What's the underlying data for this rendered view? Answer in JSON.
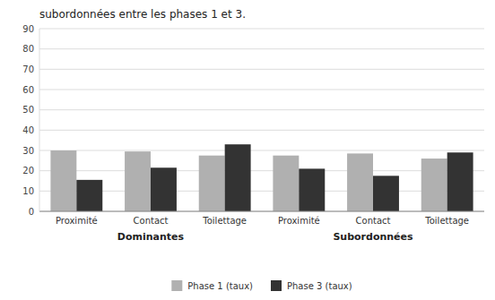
{
  "chart_data": {
    "type": "bar",
    "title": "subordonnées entre les phases 1 et 3.",
    "categories": [
      "Proximité",
      "Contact",
      "Toilettage",
      "Proximité",
      "Contact",
      "Toilettage"
    ],
    "annotations": [
      "Dominantes",
      "Subordonnées"
    ],
    "series": [
      {
        "name": "Phase 1 (taux)",
        "color": "#b0b0b0",
        "values": [
          30,
          29.5,
          27.5,
          27.5,
          28.5,
          26
        ]
      },
      {
        "name": "Phase 3 (taux)",
        "color": "#333333",
        "values": [
          15.5,
          21.5,
          33,
          21,
          17.5,
          29
        ]
      }
    ],
    "ylim": [
      0,
      90
    ],
    "yticks": [
      0,
      10,
      20,
      30,
      40,
      50,
      60,
      70,
      80,
      90
    ],
    "grid": true,
    "legend": "bottom"
  }
}
